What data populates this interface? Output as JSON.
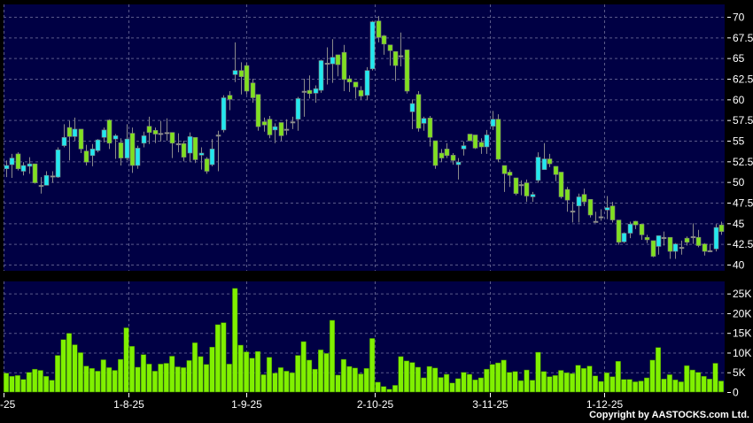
{
  "chart_data": {
    "type": "candlestick",
    "colors": {
      "up": "#22e8f0",
      "down": "#80e020",
      "unchanged": "#9a9a9a",
      "wick": "#8a8a8a",
      "volume": "#80f000",
      "panel": "#000044",
      "grid": "#5a5a8a"
    },
    "price": {
      "ylim": [
        40,
        70
      ],
      "y_ticks": [
        "70",
        "67.5",
        "65",
        "62.5",
        "60",
        "57.5",
        "55",
        "52.5",
        "50",
        "47.5",
        "45",
        "42.5",
        "40"
      ],
      "grid": true
    },
    "volume": {
      "ylim": [
        0,
        26500
      ],
      "y_ticks": [
        {
          "v": 0,
          "label": "0"
        },
        {
          "v": 5000,
          "label": "5K"
        },
        {
          "v": 10000,
          "label": "10K"
        },
        {
          "v": 15000,
          "label": "15K"
        },
        {
          "v": 20000,
          "label": "20K"
        },
        {
          "v": 25000,
          "label": "25K"
        }
      ],
      "grid": true
    },
    "x_ticks": [
      {
        "label": "-25",
        "index": -0.5
      },
      {
        "label": "1-8-25",
        "index": 21.4
      },
      {
        "label": "1-9-25",
        "index": 42
      },
      {
        "label": "2-10-25",
        "index": 64.4
      },
      {
        "label": "3-11-25",
        "index": 84.6
      },
      {
        "label": "1-12-25",
        "index": 104.6
      }
    ],
    "ohlc": [
      [
        51.6,
        52.6,
        50.6,
        52.0
      ],
      [
        52.1,
        53.4,
        50.5,
        52.9
      ],
      [
        53.4,
        53.6,
        51.4,
        51.6
      ],
      [
        51.3,
        52.4,
        50.8,
        52.0
      ],
      [
        51.9,
        53.0,
        51.0,
        52.2
      ],
      [
        52.2,
        52.2,
        49.8,
        49.9
      ],
      [
        49.6,
        50.6,
        48.6,
        49.6
      ],
      [
        49.6,
        51.3,
        49.6,
        50.8
      ],
      [
        50.75,
        51.3,
        49.9,
        50.75
      ],
      [
        50.6,
        54.2,
        50.5,
        53.9
      ],
      [
        54.4,
        57.0,
        54.2,
        55.4
      ],
      [
        56.6,
        57.4,
        52.6,
        55.5
      ],
      [
        55.5,
        57.8,
        55.0,
        56.4
      ],
      [
        56.4,
        56.4,
        53.5,
        54.0
      ],
      [
        53.75,
        54.5,
        52.0,
        52.4
      ],
      [
        53.2,
        54.6,
        51.9,
        54.0
      ],
      [
        53.8,
        55.2,
        53.6,
        55.1
      ],
      [
        55.4,
        56.6,
        54.8,
        56.3
      ],
      [
        57.5,
        57.6,
        54.0,
        54.7
      ],
      [
        55.2,
        55.8,
        52.8,
        55.6
      ],
      [
        54.75,
        55.3,
        52.0,
        52.9
      ],
      [
        52.9,
        57.0,
        52.6,
        55.2
      ],
      [
        55.9,
        56.6,
        51.1,
        52.0
      ],
      [
        52.0,
        54.4,
        51.6,
        54.1
      ],
      [
        54.7,
        56.1,
        54.2,
        55.6
      ],
      [
        56.75,
        57.9,
        54.6,
        56.0
      ],
      [
        56.25,
        56.6,
        54.7,
        55.8
      ],
      [
        55.9,
        57.4,
        54.9,
        55.9
      ],
      [
        56.0,
        57.7,
        55.0,
        56.0
      ],
      [
        56.0,
        56.0,
        52.9,
        54.7
      ],
      [
        54.65,
        55.9,
        53.6,
        54.65
      ],
      [
        54.65,
        55.0,
        52.5,
        53.0
      ],
      [
        53.5,
        56.0,
        52.4,
        55.5
      ],
      [
        55.4,
        55.4,
        52.3,
        52.7
      ],
      [
        53.25,
        54.2,
        51.5,
        53.5
      ],
      [
        52.8,
        53.0,
        51.0,
        51.3
      ],
      [
        52.1,
        55.2,
        51.9,
        54.0
      ],
      [
        55.7,
        56.2,
        51.3,
        55.7
      ],
      [
        56.3,
        60.5,
        56.0,
        60.2
      ],
      [
        60.5,
        61.0,
        58.7,
        60.0
      ],
      [
        63.0,
        66.9,
        62.1,
        63.5
      ],
      [
        63.5,
        64.5,
        60.6,
        62.75
      ],
      [
        64.1,
        64.5,
        60.6,
        61.0
      ],
      [
        62.0,
        62.5,
        59.6,
        60.2
      ],
      [
        60.6,
        60.6,
        56.2,
        56.7
      ],
      [
        57.3,
        57.8,
        56.1,
        56.9
      ],
      [
        57.6,
        58.0,
        55.3,
        55.7
      ],
      [
        56.3,
        57.1,
        54.7,
        56.7
      ],
      [
        57.2,
        57.2,
        55.0,
        55.6
      ],
      [
        56.4,
        57.6,
        55.7,
        56.4
      ],
      [
        57.3,
        57.9,
        56.4,
        57.3
      ],
      [
        57.6,
        60.3,
        56.2,
        60.1
      ],
      [
        61.0,
        62.5,
        57.9,
        61.0
      ],
      [
        61.1,
        62.9,
        60.1,
        60.7
      ],
      [
        60.75,
        61.7,
        59.6,
        61.3
      ],
      [
        61.1,
        64.8,
        60.8,
        64.7
      ],
      [
        64.4,
        66.3,
        61.8,
        64.4
      ],
      [
        64.3,
        67.3,
        62.0,
        65.1
      ],
      [
        65.4,
        65.4,
        62.8,
        64.2
      ],
      [
        65.7,
        66.6,
        61.0,
        62.4
      ],
      [
        62.5,
        62.9,
        60.9,
        62.1
      ],
      [
        62.1,
        62.1,
        60.1,
        61.5
      ],
      [
        61.1,
        61.6,
        60.0,
        60.4
      ],
      [
        60.5,
        63.9,
        59.9,
        63.5
      ],
      [
        63.7,
        69.5,
        63.5,
        69.4
      ],
      [
        69.5,
        70.1,
        66.9,
        67.5
      ],
      [
        67.7,
        67.8,
        65.4,
        66.7
      ],
      [
        66.6,
        66.6,
        64.1,
        65.9
      ],
      [
        65.8,
        65.8,
        62.2,
        64.1
      ],
      [
        65.3,
        68.1,
        64.0,
        65.3
      ],
      [
        66.0,
        66.0,
        60.7,
        61.0
      ],
      [
        58.5,
        60.0,
        56.4,
        59.5
      ],
      [
        60.6,
        61.0,
        56.1,
        56.5
      ],
      [
        57.1,
        57.9,
        56.2,
        57.7
      ],
      [
        57.75,
        58.0,
        54.3,
        55.4
      ],
      [
        55.0,
        55.0,
        51.6,
        52.0
      ],
      [
        53.5,
        54.0,
        52.4,
        52.9
      ],
      [
        54.0,
        54.7,
        52.9,
        53.2
      ],
      [
        53.25,
        53.5,
        52.1,
        52.6
      ],
      [
        52.1,
        52.9,
        50.3,
        52.4
      ],
      [
        54.0,
        54.9,
        53.2,
        54.4
      ],
      [
        55.8,
        55.8,
        54.9,
        55.0
      ],
      [
        55.7,
        55.7,
        54.0,
        54.1
      ],
      [
        54.8,
        55.3,
        53.4,
        54.25
      ],
      [
        54.25,
        56.3,
        53.4,
        55.7
      ],
      [
        56.75,
        58.6,
        56.3,
        57.6
      ],
      [
        57.6,
        58.2,
        52.4,
        52.75
      ],
      [
        52.0,
        52.0,
        48.8,
        51.0
      ],
      [
        51.2,
        51.5,
        49.4,
        50.8
      ],
      [
        50.5,
        50.5,
        48.4,
        48.6
      ],
      [
        49.7,
        50.2,
        48.4,
        49.7
      ],
      [
        49.9,
        50.3,
        47.6,
        48.3
      ],
      [
        48.2,
        48.8,
        47.6,
        48.5
      ],
      [
        50.2,
        53.6,
        49.9,
        53.0
      ],
      [
        51.5,
        54.7,
        51.5,
        52.8
      ],
      [
        52.8,
        53.4,
        51.8,
        52.2
      ],
      [
        51.9,
        51.9,
        50.1,
        50.9
      ],
      [
        51.2,
        51.2,
        48.0,
        48.2
      ],
      [
        49.1,
        49.4,
        46.4,
        47.8
      ],
      [
        46.5,
        47.6,
        45.1,
        46.5
      ],
      [
        47.1,
        48.6,
        45.1,
        48.2
      ],
      [
        48.5,
        49.2,
        47.1,
        47.6
      ],
      [
        47.9,
        47.9,
        45.7,
        46.0
      ],
      [
        45.25,
        46.4,
        45.1,
        45.25
      ],
      [
        45.8,
        46.7,
        45.3,
        45.8
      ],
      [
        46.6,
        48.3,
        45.5,
        46.9
      ],
      [
        47.1,
        47.6,
        45.1,
        45.4
      ],
      [
        45.4,
        45.4,
        42.4,
        42.7
      ],
      [
        42.75,
        43.9,
        42.6,
        43.8
      ],
      [
        43.8,
        45.2,
        43.2,
        44.9
      ],
      [
        45.25,
        45.3,
        44.3,
        44.8
      ],
      [
        44.9,
        44.9,
        43.0,
        43.6
      ],
      [
        43.3,
        43.6,
        42.6,
        43.0
      ],
      [
        42.9,
        42.9,
        40.9,
        41.0
      ],
      [
        42.2,
        43.5,
        41.2,
        43.5
      ],
      [
        43.3,
        44.0,
        42.3,
        43.3
      ],
      [
        43.3,
        43.3,
        40.7,
        41.6
      ],
      [
        41.6,
        42.6,
        40.7,
        42.5
      ],
      [
        42.1,
        42.9,
        41.2,
        42.1
      ],
      [
        43.2,
        43.4,
        42.3,
        42.7
      ],
      [
        43.4,
        45.0,
        42.5,
        43.4
      ],
      [
        43.3,
        44.2,
        42.1,
        42.3
      ],
      [
        42.5,
        42.6,
        41.1,
        41.6
      ],
      [
        41.7,
        42.5,
        41.5,
        41.7
      ],
      [
        41.9,
        44.9,
        41.6,
        44.5
      ],
      [
        44.8,
        45.2,
        43.6,
        44.0
      ]
    ],
    "volume_values": [
      4800,
      4000,
      4200,
      3200,
      5000,
      5800,
      5500,
      4000,
      3000,
      9300,
      13300,
      14900,
      12000,
      10000,
      6600,
      6000,
      5300,
      8200,
      6200,
      5500,
      8300,
      16300,
      11600,
      6300,
      9500,
      7100,
      5300,
      7100,
      7300,
      9100,
      6400,
      6200,
      8000,
      12500,
      9000,
      7000,
      11400,
      17100,
      17600,
      7100,
      26300,
      11900,
      10200,
      8600,
      10300,
      4400,
      8800,
      4800,
      6200,
      5300,
      4900,
      9300,
      12800,
      8100,
      5800,
      10700,
      9800,
      18200,
      4300,
      8300,
      6500,
      6100,
      4600,
      6000,
      13600,
      2500,
      1400,
      700,
      1700,
      9000,
      7900,
      7500,
      6300,
      3600,
      6500,
      6100,
      3700,
      4500,
      2300,
      3400,
      5000,
      4500,
      3100,
      3600,
      5800,
      7000,
      7400,
      8100,
      5000,
      5200,
      2900,
      5600,
      3000,
      10100,
      5200,
      3900,
      4200,
      5500,
      4900,
      4700,
      6800,
      6000,
      6600,
      4100,
      2700,
      4900,
      3900,
      7800,
      3200,
      3200,
      2600,
      2800,
      3600,
      8100,
      11300,
      3300,
      4400,
      3100,
      2600,
      6700,
      5600,
      5000,
      4000,
      3300,
      7300,
      2800
    ]
  },
  "footer": {
    "copyright": "Copyright by AASTOCKS.com Ltd."
  }
}
